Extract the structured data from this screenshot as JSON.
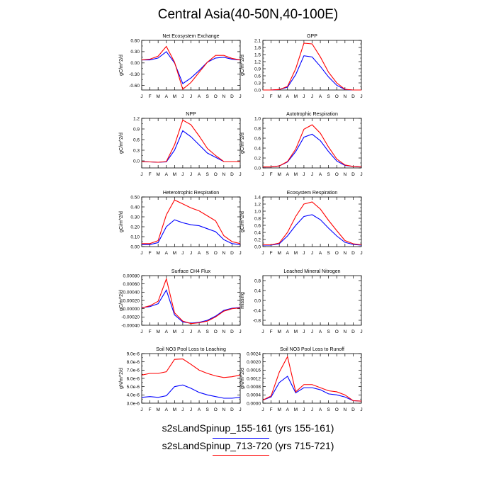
{
  "title": "Central Asia(40-50N,40-100E)",
  "colors": {
    "run1": "#0000ff",
    "run2": "#ff0000",
    "axis": "#000000",
    "background": "#ffffff"
  },
  "legend": {
    "entries": [
      {
        "label": "s2sLandSpinup_155-161 (yrs 155-161)",
        "color": "#0000ff"
      },
      {
        "label": "s2sLandSpinup_713-720 (yrs 715-721)",
        "color": "#ff0000"
      }
    ]
  },
  "chart_data": [
    {
      "type": "line",
      "title": "Net Ecosystem Exchange",
      "ylabel": "gC/m^2/d",
      "x": [
        "J",
        "F",
        "M",
        "A",
        "M",
        "J",
        "J",
        "A",
        "S",
        "O",
        "N",
        "D",
        "J"
      ],
      "ylim": [
        -0.72,
        0.6
      ],
      "yticks": [
        "0.60",
        "0.30",
        "0.00",
        "-0.30",
        "-0.60"
      ],
      "ytick_values": [
        0.6,
        0.3,
        0.0,
        -0.3,
        -0.6
      ],
      "series": [
        {
          "color": "#0000ff",
          "values": [
            0.08,
            0.08,
            0.13,
            0.3,
            0.0,
            -0.55,
            -0.4,
            -0.2,
            0.02,
            0.13,
            0.15,
            0.1,
            0.08
          ]
        },
        {
          "color": "#ff0000",
          "values": [
            0.08,
            0.1,
            0.18,
            0.44,
            0.02,
            -0.7,
            -0.52,
            -0.25,
            0.02,
            0.2,
            0.2,
            0.12,
            0.08
          ]
        }
      ]
    },
    {
      "type": "line",
      "title": "GPP",
      "ylabel": "gC/m^2/d",
      "x": [
        "J",
        "F",
        "M",
        "A",
        "M",
        "J",
        "J",
        "A",
        "S",
        "O",
        "N",
        "D",
        "J"
      ],
      "ylim": [
        0,
        2.1
      ],
      "yticks": [
        "2.1",
        "1.8",
        "1.5",
        "1.2",
        "0.9",
        "0.6",
        "0.3",
        "0.0"
      ],
      "ytick_values": [
        2.1,
        1.8,
        1.5,
        1.2,
        0.9,
        0.6,
        0.3,
        0.0
      ],
      "series": [
        {
          "color": "#0000ff",
          "values": [
            0.0,
            0.0,
            0.02,
            0.12,
            0.65,
            1.45,
            1.4,
            1.0,
            0.55,
            0.2,
            0.02,
            0.0,
            0.0
          ]
        },
        {
          "color": "#ff0000",
          "values": [
            0.0,
            0.0,
            0.02,
            0.15,
            0.9,
            1.98,
            1.95,
            1.4,
            0.75,
            0.3,
            0.03,
            0.0,
            0.0
          ]
        }
      ]
    },
    {
      "type": "line",
      "title": "NPP",
      "ylabel": "gC/m^2/d",
      "x": [
        "J",
        "F",
        "M",
        "A",
        "M",
        "J",
        "J",
        "A",
        "S",
        "O",
        "N",
        "D",
        "J"
      ],
      "ylim": [
        -0.2,
        1.2
      ],
      "yticks": [
        "1.2",
        "0.9",
        "0.6",
        "0.3",
        "0.0"
      ],
      "ytick_values": [
        1.2,
        0.9,
        0.6,
        0.3,
        0.0
      ],
      "series": [
        {
          "color": "#0000ff",
          "values": [
            -0.02,
            -0.03,
            -0.04,
            -0.03,
            0.3,
            0.85,
            0.68,
            0.45,
            0.22,
            0.1,
            -0.02,
            -0.02,
            -0.02
          ]
        },
        {
          "color": "#ff0000",
          "values": [
            -0.02,
            -0.03,
            -0.04,
            -0.02,
            0.45,
            1.15,
            1.02,
            0.7,
            0.35,
            0.15,
            -0.02,
            -0.02,
            -0.02
          ]
        }
      ]
    },
    {
      "type": "line",
      "title": "Autotrophic Respiration",
      "ylabel": "gC/m^2/d",
      "x": [
        "J",
        "F",
        "M",
        "A",
        "M",
        "J",
        "J",
        "A",
        "S",
        "O",
        "N",
        "D",
        "J"
      ],
      "ylim": [
        0,
        1.0
      ],
      "yticks": [
        "1.0",
        "0.8",
        "0.6",
        "0.4",
        "0.2",
        "0.0"
      ],
      "ytick_values": [
        1.0,
        0.8,
        0.6,
        0.4,
        0.2,
        0.0
      ],
      "series": [
        {
          "color": "#0000ff",
          "values": [
            0.02,
            0.02,
            0.04,
            0.12,
            0.33,
            0.62,
            0.68,
            0.55,
            0.33,
            0.14,
            0.05,
            0.03,
            0.02
          ]
        },
        {
          "color": "#ff0000",
          "values": [
            0.02,
            0.02,
            0.04,
            0.13,
            0.38,
            0.78,
            0.87,
            0.7,
            0.42,
            0.18,
            0.06,
            0.03,
            0.02
          ]
        }
      ]
    },
    {
      "type": "line",
      "title": "Heterotrophic Respiration",
      "ylabel": "gC/m^2/d",
      "x": [
        "J",
        "F",
        "M",
        "A",
        "M",
        "J",
        "J",
        "A",
        "S",
        "O",
        "N",
        "D",
        "J"
      ],
      "ylim": [
        0,
        0.5
      ],
      "yticks": [
        "0.50",
        "0.40",
        "0.30",
        "0.20",
        "0.10",
        "0.00"
      ],
      "ytick_values": [
        0.5,
        0.4,
        0.3,
        0.2,
        0.1,
        0.0
      ],
      "series": [
        {
          "color": "#0000ff",
          "values": [
            0.02,
            0.02,
            0.04,
            0.2,
            0.27,
            0.24,
            0.22,
            0.21,
            0.18,
            0.15,
            0.07,
            0.03,
            0.02
          ]
        },
        {
          "color": "#ff0000",
          "values": [
            0.03,
            0.03,
            0.06,
            0.32,
            0.47,
            0.43,
            0.39,
            0.36,
            0.31,
            0.26,
            0.11,
            0.05,
            0.03
          ]
        }
      ]
    },
    {
      "type": "line",
      "title": "Ecosystem Respiration",
      "ylabel": "gC/m^2/d",
      "x": [
        "J",
        "F",
        "M",
        "A",
        "M",
        "J",
        "J",
        "A",
        "S",
        "O",
        "N",
        "D",
        "J"
      ],
      "ylim": [
        0,
        1.4
      ],
      "yticks": [
        "1.4",
        "1.2",
        "1.0",
        "0.8",
        "0.6",
        "0.4",
        "0.2",
        "0.0"
      ],
      "ytick_values": [
        1.4,
        1.2,
        1.0,
        0.8,
        0.6,
        0.4,
        0.2,
        0.0
      ],
      "series": [
        {
          "color": "#0000ff",
          "values": [
            0.04,
            0.04,
            0.08,
            0.3,
            0.6,
            0.85,
            0.9,
            0.76,
            0.52,
            0.3,
            0.12,
            0.06,
            0.04
          ]
        },
        {
          "color": "#ff0000",
          "values": [
            0.05,
            0.05,
            0.1,
            0.4,
            0.85,
            1.2,
            1.26,
            1.06,
            0.74,
            0.45,
            0.17,
            0.08,
            0.05
          ]
        }
      ]
    },
    {
      "type": "line",
      "title": "Surface CH4 Flux",
      "ylabel": "gC/m^2/d",
      "x": [
        "J",
        "F",
        "M",
        "A",
        "M",
        "J",
        "J",
        "A",
        "S",
        "O",
        "N",
        "D",
        "J"
      ],
      "ylim": [
        -0.0004,
        0.0008
      ],
      "yticks": [
        "0.00080",
        "0.00060",
        "0.00040",
        "0.00020",
        "0.00000",
        "-0.00020",
        "-0.00040"
      ],
      "ytick_values": [
        0.0008,
        0.0006,
        0.0004,
        0.0002,
        0.0,
        -0.0002,
        -0.0004
      ],
      "series": [
        {
          "color": "#0000ff",
          "values": [
            3e-05,
            5e-05,
            0.00012,
            0.00045,
            -0.00015,
            -0.00032,
            -0.00035,
            -0.00033,
            -0.00028,
            -0.00018,
            -4e-05,
            1e-05,
            3e-05
          ]
        },
        {
          "color": "#ff0000",
          "values": [
            2e-05,
            7e-05,
            0.00018,
            0.00072,
            -0.0001,
            -0.0003,
            -0.00036,
            -0.00034,
            -0.0003,
            -0.0002,
            -6e-05,
            0.0,
            2e-05
          ]
        }
      ]
    },
    {
      "type": "line",
      "title": "Leached Mineral Nitrogen",
      "ylabel": "missing",
      "x": [
        "J",
        "F",
        "M",
        "A",
        "M",
        "J",
        "J",
        "A",
        "S",
        "O",
        "N",
        "D",
        "J"
      ],
      "ylim": [
        -1.0,
        1.0
      ],
      "yticks": [
        "0.8",
        "0.4",
        "0.0",
        "-0.4",
        "-0.8"
      ],
      "ytick_values": [
        0.8,
        0.4,
        0.0,
        -0.4,
        -0.8
      ],
      "series": []
    },
    {
      "type": "line",
      "title": "Soil NO3 Pool Loss to Leaching",
      "ylabel": "gN/m^2/d",
      "x": [
        "J",
        "F",
        "M",
        "A",
        "M",
        "J",
        "J",
        "A",
        "S",
        "O",
        "N",
        "D",
        "J"
      ],
      "ylim": [
        3e-06,
        9e-06
      ],
      "yticks": [
        "9.0e-6",
        "8.0e-6",
        "7.0e-6",
        "6.0e-6",
        "5.0e-6",
        "4.0e-6",
        "3.0e-6"
      ],
      "ytick_values": [
        9e-06,
        8e-06,
        7e-06,
        6e-06,
        5e-06,
        4e-06,
        3e-06
      ],
      "series": [
        {
          "color": "#0000ff",
          "values": [
            3.7e-06,
            3.8e-06,
            3.7e-06,
            3.9e-06,
            5e-06,
            5.2e-06,
            4.8e-06,
            4.3e-06,
            4e-06,
            3.8e-06,
            3.6e-06,
            3.6e-06,
            3.7e-06
          ]
        },
        {
          "color": "#ff0000",
          "values": [
            6.4e-06,
            6.6e-06,
            6.6e-06,
            6.8e-06,
            8.3e-06,
            8.35e-06,
            7.7e-06,
            7e-06,
            6.6e-06,
            6.3e-06,
            6.1e-06,
            6.2e-06,
            6.4e-06
          ]
        }
      ]
    },
    {
      "type": "line",
      "title": "Soil NO3 Pool Loss to Runoff",
      "ylabel": "gN/m^2/d",
      "x": [
        "J",
        "F",
        "M",
        "A",
        "M",
        "J",
        "J",
        "A",
        "S",
        "O",
        "N",
        "D",
        "J"
      ],
      "ylim": [
        0,
        0.0024
      ],
      "yticks": [
        "0.0024",
        "0.0020",
        "0.0016",
        "0.0012",
        "0.0008",
        "0.0004",
        "0.0000"
      ],
      "ytick_values": [
        0.0024,
        0.002,
        0.0016,
        0.0012,
        0.0008,
        0.0004,
        0.0
      ],
      "series": [
        {
          "color": "#0000ff",
          "values": [
            0.00015,
            0.0003,
            0.001,
            0.0013,
            0.0005,
            0.00075,
            0.00075,
            0.00065,
            0.00045,
            0.0004,
            0.0003,
            0.00012,
            0.0001
          ]
        },
        {
          "color": "#ff0000",
          "values": [
            0.00015,
            0.00035,
            0.0015,
            0.00225,
            0.00055,
            0.0009,
            0.0009,
            0.00075,
            0.0006,
            0.00055,
            0.0004,
            0.00012,
            0.0001
          ]
        }
      ]
    }
  ]
}
